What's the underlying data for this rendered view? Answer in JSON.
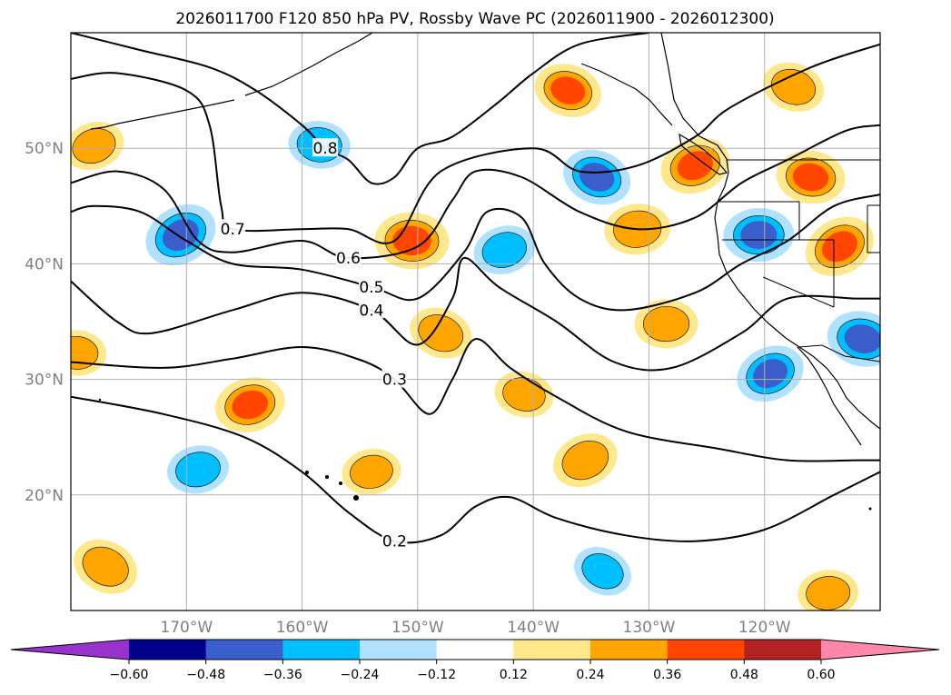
{
  "chart_data": {
    "type": "heatmap",
    "title": "2026011700 F120 850 hPa PV, Rossby Wave PC (2026011900 - 2026012300)",
    "lon_range": [
      -180,
      -110
    ],
    "lat_range": [
      10,
      60
    ],
    "lon_ticks": [
      {
        "value": -170,
        "label": "170°W"
      },
      {
        "value": -160,
        "label": "160°W"
      },
      {
        "value": -150,
        "label": "150°W"
      },
      {
        "value": -140,
        "label": "140°W"
      },
      {
        "value": -130,
        "label": "130°W"
      },
      {
        "value": -120,
        "label": "120°W"
      }
    ],
    "lat_ticks": [
      {
        "value": 20,
        "label": "20°N"
      },
      {
        "value": 30,
        "label": "30°N"
      },
      {
        "value": 40,
        "label": "40°N"
      },
      {
        "value": 50,
        "label": "50°N"
      }
    ],
    "grid": true,
    "colorbar": {
      "orientation": "horizontal",
      "extend": "both",
      "levels": [
        -0.6,
        -0.48,
        -0.36,
        -0.24,
        -0.12,
        0.12,
        0.24,
        0.36,
        0.48,
        0.6
      ],
      "tick_labels": [
        "−0.60",
        "−0.48",
        "−0.36",
        "−0.24",
        "−0.12",
        "0.12",
        "0.24",
        "0.36",
        "0.48",
        "0.60"
      ],
      "colors": [
        "#9932cc",
        "#00008b",
        "#3a5fcd",
        "#00bfff",
        "#b0e2ff",
        "#ffffff",
        "#ffe88c",
        "#ffa500",
        "#ff4500",
        "#b22222",
        "#ff88aa"
      ]
    },
    "pv_contours": [
      {
        "value": 0.2,
        "label": "0.2",
        "points": [
          [
            -180,
            28.5
          ],
          [
            -172,
            27
          ],
          [
            -165,
            25
          ],
          [
            -160,
            22
          ],
          [
            -156,
            18.5
          ],
          [
            -152,
            16
          ],
          [
            -148,
            16.5
          ],
          [
            -145,
            19
          ],
          [
            -142,
            19.8
          ],
          [
            -138,
            18
          ],
          [
            -132,
            16.5
          ],
          [
            -126,
            16
          ],
          [
            -120,
            17
          ],
          [
            -114,
            20
          ],
          [
            -110,
            22
          ]
        ]
      },
      {
        "value": 0.3,
        "label": "0.3",
        "points": [
          [
            -180,
            31.5
          ],
          [
            -172,
            31
          ],
          [
            -166,
            31.8
          ],
          [
            -160,
            32.8
          ],
          [
            -155,
            31.7
          ],
          [
            -152,
            30
          ],
          [
            -149,
            27
          ],
          [
            -147,
            30
          ],
          [
            -145,
            33.5
          ],
          [
            -142,
            31
          ],
          [
            -138,
            28.5
          ],
          [
            -132,
            25.5
          ],
          [
            -124,
            24
          ],
          [
            -118,
            23
          ],
          [
            -112,
            23
          ],
          [
            -110,
            23
          ]
        ]
      },
      {
        "value": 0.4,
        "label": "0.4",
        "points": [
          [
            -180,
            38.5
          ],
          [
            -176,
            35
          ],
          [
            -173,
            34
          ],
          [
            -166,
            36
          ],
          [
            -160,
            37.5
          ],
          [
            -154,
            36
          ],
          [
            -150,
            33
          ],
          [
            -147,
            37
          ],
          [
            -146,
            40.5
          ],
          [
            -143,
            38
          ],
          [
            -138,
            35
          ],
          [
            -133,
            31.5
          ],
          [
            -128,
            31
          ],
          [
            -122,
            34
          ],
          [
            -118,
            37
          ],
          [
            -112,
            37
          ],
          [
            -110,
            37
          ]
        ]
      },
      {
        "value": 0.5,
        "label": "0.5",
        "points": [
          [
            -180,
            44.5
          ],
          [
            -178,
            45
          ],
          [
            -174,
            44.5
          ],
          [
            -170,
            42
          ],
          [
            -166,
            40
          ],
          [
            -160,
            39.5
          ],
          [
            -154,
            38
          ],
          [
            -150,
            37
          ],
          [
            -146,
            41
          ],
          [
            -144,
            44.5
          ],
          [
            -141,
            44
          ],
          [
            -139,
            40
          ],
          [
            -136,
            37
          ],
          [
            -132,
            36
          ],
          [
            -126,
            37.5
          ],
          [
            -122,
            40
          ],
          [
            -118,
            42
          ],
          [
            -114,
            45
          ],
          [
            -110,
            46
          ]
        ]
      },
      {
        "value": 0.6,
        "label": "0.6",
        "points": [
          [
            -180,
            47
          ],
          [
            -176,
            48
          ],
          [
            -172,
            46.5
          ],
          [
            -169,
            42
          ],
          [
            -166,
            41
          ],
          [
            -160,
            42
          ],
          [
            -156,
            40.5
          ],
          [
            -150,
            41.5
          ],
          [
            -147,
            45.5
          ],
          [
            -145,
            48
          ],
          [
            -141,
            47.5
          ],
          [
            -136,
            44.5
          ],
          [
            -131,
            43
          ],
          [
            -126,
            44
          ],
          [
            -122,
            47
          ],
          [
            -118,
            49
          ],
          [
            -113,
            51.5
          ],
          [
            -110,
            52
          ]
        ]
      },
      {
        "value": 0.7,
        "label": "0.7",
        "points": [
          [
            -180,
            56
          ],
          [
            -176,
            56.5
          ],
          [
            -170,
            55
          ],
          [
            -168,
            52
          ],
          [
            -167,
            45
          ],
          [
            -166,
            43
          ],
          [
            -160,
            43
          ],
          [
            -156,
            43
          ],
          [
            -152,
            42
          ],
          [
            -148,
            48
          ],
          [
            -140,
            50
          ],
          [
            -136,
            48
          ],
          [
            -131,
            48.5
          ],
          [
            -126,
            51
          ],
          [
            -123,
            53.5
          ],
          [
            -116,
            57
          ],
          [
            -110,
            59
          ]
        ]
      },
      {
        "value": 0.8,
        "label": "0.8",
        "points": [
          [
            -180,
            60
          ],
          [
            -174,
            58.5
          ],
          [
            -168,
            57
          ],
          [
            -164,
            55
          ],
          [
            -160,
            52
          ],
          [
            -158,
            50
          ],
          [
            -156,
            49
          ],
          [
            -154,
            47
          ],
          [
            -152,
            47.5
          ],
          [
            -150,
            50
          ],
          [
            -147,
            51
          ],
          [
            -143,
            54
          ],
          [
            -140,
            56.5
          ],
          [
            -136,
            59
          ],
          [
            -130,
            60
          ]
        ]
      }
    ],
    "pv_anomaly_blobs": [
      {
        "lon": -170.5,
        "lat": 42.5,
        "value": -0.45
      },
      {
        "lon": -158.5,
        "lat": 50.3,
        "value": -0.28
      },
      {
        "lon": -142.5,
        "lat": 41.2,
        "value": -0.28
      },
      {
        "lon": -134.5,
        "lat": 47.5,
        "value": -0.38
      },
      {
        "lon": -120.5,
        "lat": 42.5,
        "value": -0.4
      },
      {
        "lon": -119.5,
        "lat": 30.5,
        "value": -0.38
      },
      {
        "lon": -111.5,
        "lat": 33.5,
        "value": -0.42
      },
      {
        "lon": -169.0,
        "lat": 22.2,
        "value": -0.28
      },
      {
        "lon": -134.0,
        "lat": 13.4,
        "value": -0.24
      },
      {
        "lon": -150.5,
        "lat": 42.0,
        "value": 0.46
      },
      {
        "lon": -126.0,
        "lat": 48.5,
        "value": 0.4
      },
      {
        "lon": -137.0,
        "lat": 55.0,
        "value": 0.36
      },
      {
        "lon": -131.0,
        "lat": 43.0,
        "value": 0.34
      },
      {
        "lon": -113.5,
        "lat": 41.5,
        "value": 0.42
      },
      {
        "lon": -116.0,
        "lat": 47.5,
        "value": 0.38
      },
      {
        "lon": -164.5,
        "lat": 27.8,
        "value": 0.4
      },
      {
        "lon": -148.0,
        "lat": 34.0,
        "value": 0.3
      },
      {
        "lon": -128.5,
        "lat": 34.8,
        "value": 0.3
      },
      {
        "lon": -135.5,
        "lat": 23.0,
        "value": 0.34
      },
      {
        "lon": -140.8,
        "lat": 28.7,
        "value": 0.24
      },
      {
        "lon": -154.0,
        "lat": 22.0,
        "value": 0.24
      },
      {
        "lon": -177.0,
        "lat": 13.8,
        "value": 0.34
      },
      {
        "lon": -179.5,
        "lat": 32.3,
        "value": 0.24
      },
      {
        "lon": -178.0,
        "lat": 50.2,
        "value": 0.26
      },
      {
        "lon": -117.5,
        "lat": 55.3,
        "value": 0.28
      },
      {
        "lon": -114.5,
        "lat": 11.5,
        "value": 0.26
      }
    ],
    "colors": {
      "coastline": "#000000",
      "grid": "#b0b0b0",
      "tick_text": "#808080"
    }
  }
}
